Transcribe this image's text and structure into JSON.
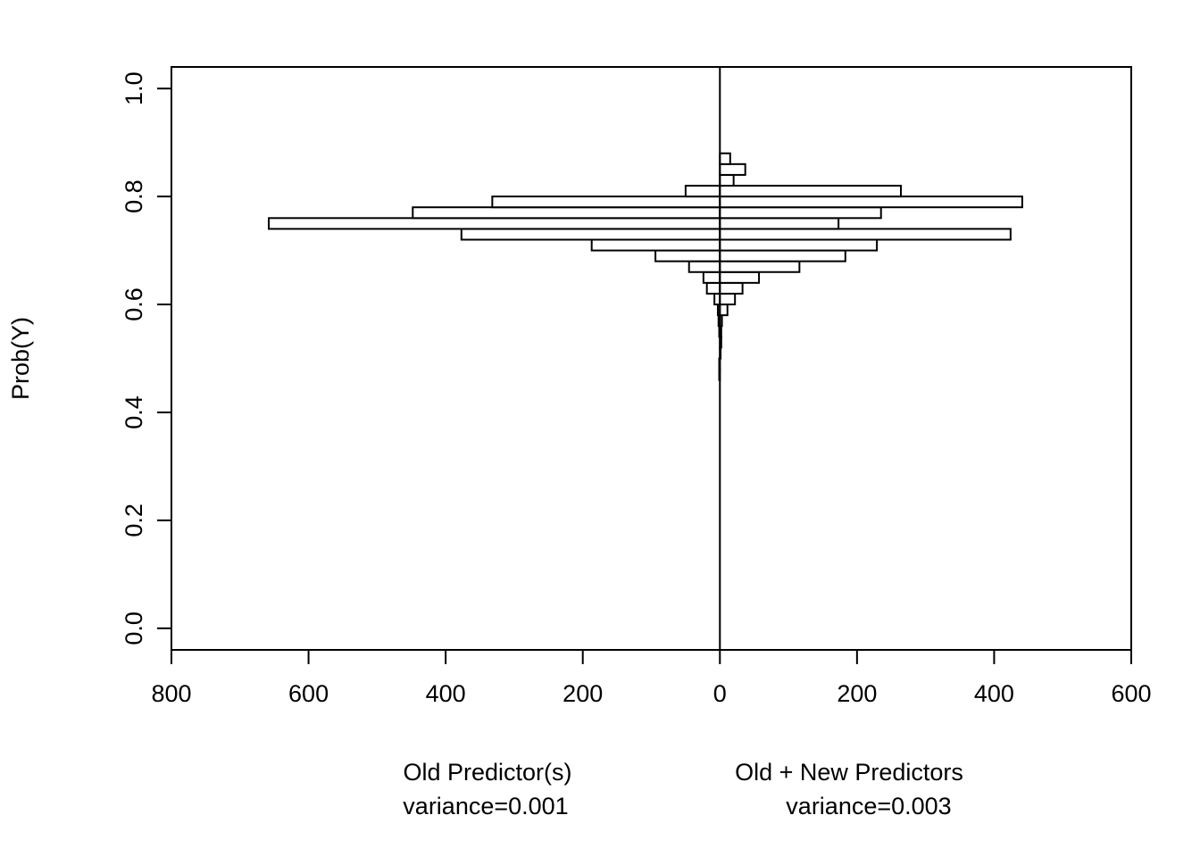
{
  "chart_data": {
    "type": "bar",
    "orientation": "horizontal-back-to-back",
    "ylabel": "Prob(Y)",
    "ylim": [
      -0.04,
      1.04
    ],
    "y_ticks": [
      0.0,
      0.2,
      0.4,
      0.6,
      0.8,
      1.0
    ],
    "y_tick_labels": [
      "0.0",
      "0.2",
      "0.4",
      "0.6",
      "0.8",
      "1.0"
    ],
    "x_ticks": [
      -800,
      -600,
      -400,
      -200,
      0,
      200,
      400,
      600
    ],
    "x_tick_labels": [
      "800",
      "600",
      "400",
      "200",
      "0",
      "200",
      "400",
      "600"
    ],
    "xlim": [
      -800,
      600
    ],
    "grid": false,
    "groups": [
      {
        "side": "left",
        "label": "Old Predictor(s)",
        "variance_label": "variance=0.001",
        "bins": [
          {
            "y0": 0.46,
            "y1": 0.48,
            "count": 1
          },
          {
            "y0": 0.48,
            "y1": 0.5,
            "count": 1
          },
          {
            "y0": 0.54,
            "y1": 0.56,
            "count": 1
          },
          {
            "y0": 0.56,
            "y1": 0.58,
            "count": 2
          },
          {
            "y0": 0.58,
            "y1": 0.6,
            "count": 3
          },
          {
            "y0": 0.6,
            "y1": 0.62,
            "count": 8
          },
          {
            "y0": 0.62,
            "y1": 0.64,
            "count": 19
          },
          {
            "y0": 0.64,
            "y1": 0.66,
            "count": 24
          },
          {
            "y0": 0.66,
            "y1": 0.68,
            "count": 45
          },
          {
            "y0": 0.68,
            "y1": 0.7,
            "count": 94
          },
          {
            "y0": 0.7,
            "y1": 0.72,
            "count": 187
          },
          {
            "y0": 0.72,
            "y1": 0.74,
            "count": 377
          },
          {
            "y0": 0.74,
            "y1": 0.76,
            "count": 658
          },
          {
            "y0": 0.76,
            "y1": 0.78,
            "count": 448
          },
          {
            "y0": 0.78,
            "y1": 0.8,
            "count": 332
          },
          {
            "y0": 0.8,
            "y1": 0.82,
            "count": 50
          }
        ]
      },
      {
        "side": "right",
        "label": "Old + New Predictors",
        "variance_label": "variance=0.003",
        "bins": [
          {
            "y0": 0.5,
            "y1": 0.52,
            "count": 1
          },
          {
            "y0": 0.52,
            "y1": 0.54,
            "count": 2
          },
          {
            "y0": 0.54,
            "y1": 0.56,
            "count": 2
          },
          {
            "y0": 0.56,
            "y1": 0.58,
            "count": 3
          },
          {
            "y0": 0.58,
            "y1": 0.6,
            "count": 11
          },
          {
            "y0": 0.6,
            "y1": 0.62,
            "count": 22
          },
          {
            "y0": 0.62,
            "y1": 0.64,
            "count": 33
          },
          {
            "y0": 0.64,
            "y1": 0.66,
            "count": 57
          },
          {
            "y0": 0.66,
            "y1": 0.68,
            "count": 116
          },
          {
            "y0": 0.68,
            "y1": 0.7,
            "count": 183
          },
          {
            "y0": 0.7,
            "y1": 0.72,
            "count": 229
          },
          {
            "y0": 0.72,
            "y1": 0.74,
            "count": 424
          },
          {
            "y0": 0.74,
            "y1": 0.76,
            "count": 173
          },
          {
            "y0": 0.76,
            "y1": 0.78,
            "count": 235
          },
          {
            "y0": 0.78,
            "y1": 0.8,
            "count": 441
          },
          {
            "y0": 0.8,
            "y1": 0.82,
            "count": 264
          },
          {
            "y0": 0.82,
            "y1": 0.84,
            "count": 20
          },
          {
            "y0": 0.84,
            "y1": 0.86,
            "count": 37
          },
          {
            "y0": 0.86,
            "y1": 0.88,
            "count": 15
          }
        ]
      }
    ]
  }
}
